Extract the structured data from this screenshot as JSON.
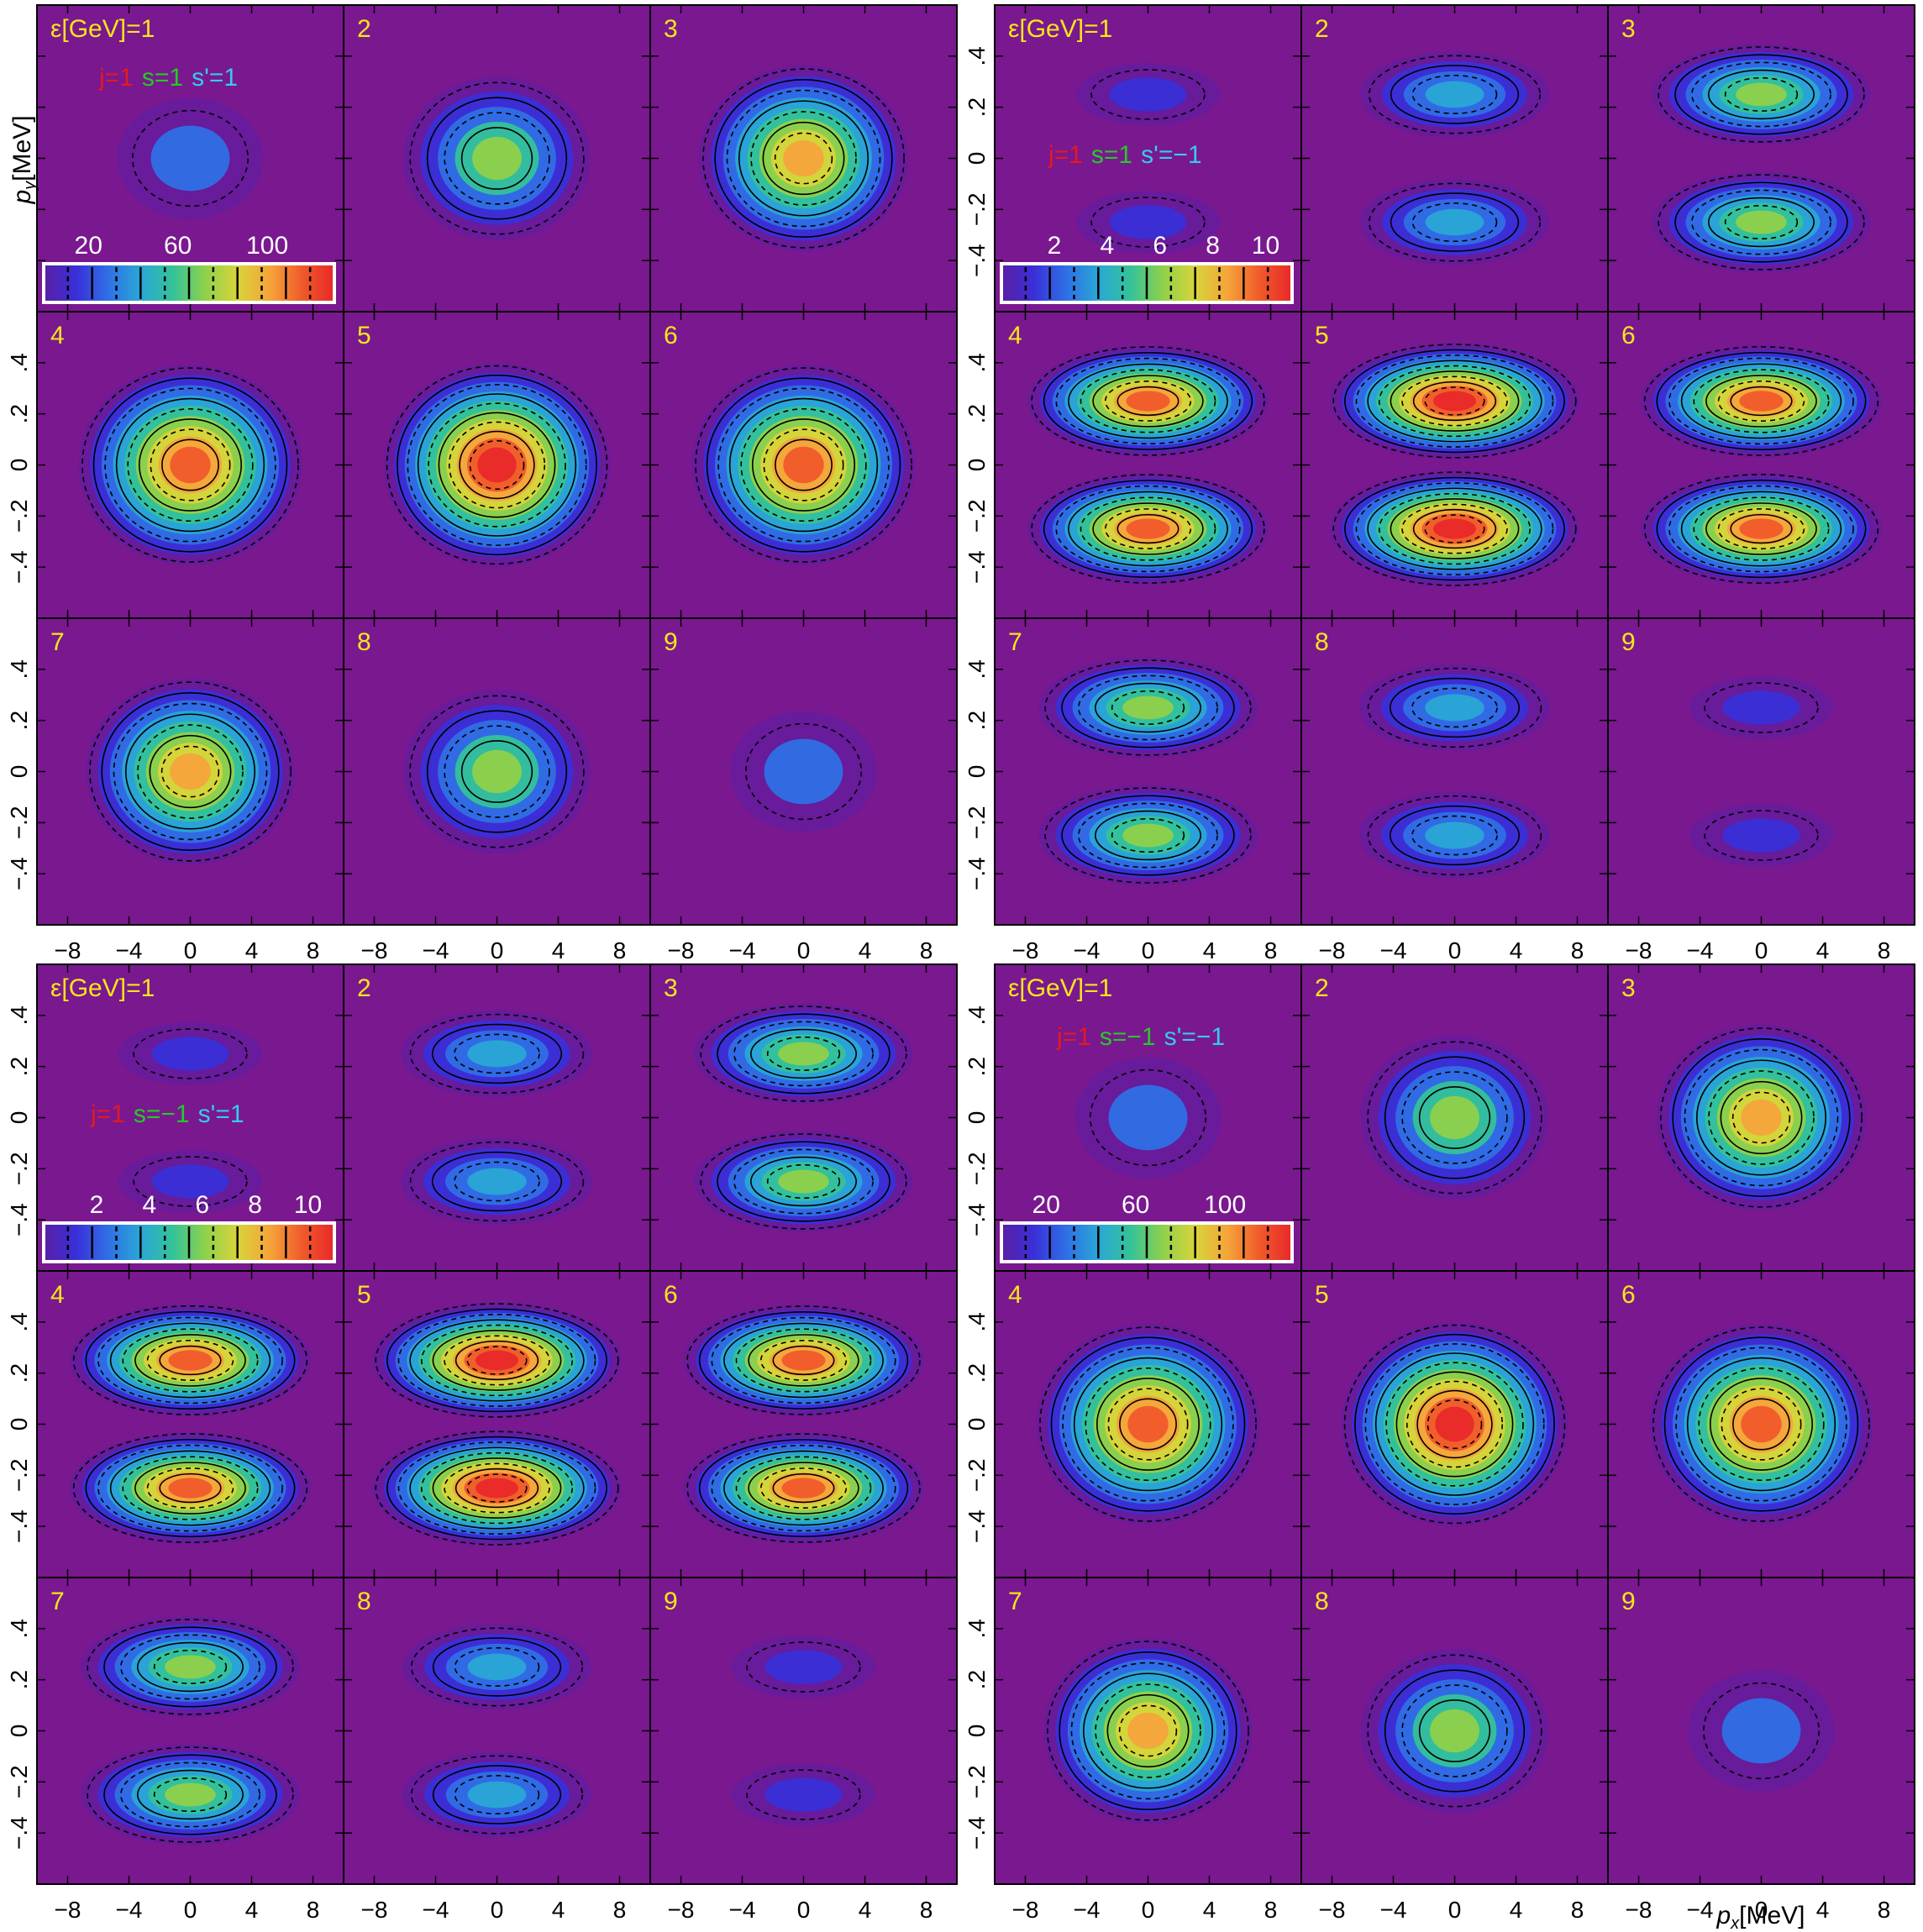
{
  "colors": {
    "background": "#7a1890",
    "panel_border": "#000000",
    "energy_label": "#f6e619",
    "j_label": "#e41a1c",
    "s_label": "#22cc22",
    "sprime_label": "#33ccee",
    "legend_text": "#ffffff",
    "colormap": [
      "#5a1fa3",
      "#3a2fd8",
      "#2f6fe6",
      "#2aa7d6",
      "#34c29a",
      "#8fd14a",
      "#d8d43a",
      "#f5a43a",
      "#f05a2a",
      "#e8282a"
    ]
  },
  "axes_labels": {
    "x": "p",
    "x_sub": "x",
    "x_unit": "[MeV]",
    "y": "p",
    "y_sub": "y",
    "y_unit": "[MeV]"
  },
  "chart_data": [
    {
      "type": "heatmap",
      "name": "",
      "spin_labels": {
        "j": "j=1",
        "s": "s=1",
        "sprime": "s'=1"
      },
      "energy_label": "ε[GeV]=1",
      "panel_labels": [
        "ε[GeV]=1",
        "2",
        "3",
        "4",
        "5",
        "6",
        "7",
        "8",
        "9"
      ],
      "panel_energies_gev": [
        1,
        2,
        3,
        4,
        5,
        6,
        7,
        8,
        9
      ],
      "xlim": [
        -10,
        10
      ],
      "ylim": [
        -0.6,
        0.6
      ],
      "x_ticks": [
        -8,
        -4,
        0,
        4,
        8
      ],
      "x_tick_labels": [
        "−8",
        "−4",
        "0",
        "4",
        "8"
      ],
      "y_ticks": [
        -0.4,
        -0.2,
        0,
        0.2,
        0.4
      ],
      "y_tick_labels": [
        "−.4",
        "−.2",
        "0",
        ".2",
        ".4"
      ],
      "lobes": "single",
      "peak_values": [
        18,
        62,
        96,
        122,
        128,
        122,
        96,
        62,
        18
      ],
      "colorbar": {
        "ticks": [
          20,
          60,
          100
        ],
        "tick_labels": [
          "20",
          "60",
          "100"
        ],
        "max": 130
      }
    },
    {
      "type": "heatmap",
      "name": "",
      "spin_labels": {
        "j": "j=1",
        "s": "s=1",
        "sprime": "s'=−1"
      },
      "energy_label": "ε[GeV]=1",
      "panel_labels": [
        "ε[GeV]=1",
        "2",
        "3",
        "4",
        "5",
        "6",
        "7",
        "8",
        "9"
      ],
      "panel_energies_gev": [
        1,
        2,
        3,
        4,
        5,
        6,
        7,
        8,
        9
      ],
      "xlim": [
        -10,
        10
      ],
      "ylim": [
        -0.6,
        0.6
      ],
      "x_ticks": [
        -8,
        -4,
        0,
        4,
        8
      ],
      "x_tick_labels": [
        "−8",
        "−4",
        "0",
        "4",
        "8"
      ],
      "y_ticks": [
        -0.4,
        -0.2,
        0,
        0.2,
        0.4
      ],
      "y_tick_labels": [
        "−.4",
        "−.2",
        "0",
        ".2",
        ".4"
      ],
      "lobes": "double",
      "peak_values": [
        0.6,
        3.4,
        6.4,
        9.3,
        10.6,
        9.4,
        6.4,
        3.6,
        0.6
      ],
      "colorbar": {
        "ticks": [
          2,
          4,
          6,
          8,
          10
        ],
        "tick_labels": [
          "2",
          "4",
          "6",
          "8",
          "10"
        ],
        "max": 11
      }
    },
    {
      "type": "heatmap",
      "name": "",
      "spin_labels": {
        "j": "j=1",
        "s": "s=−1",
        "sprime": "s'=1"
      },
      "energy_label": "ε[GeV]=1",
      "panel_labels": [
        "ε[GeV]=1",
        "2",
        "3",
        "4",
        "5",
        "6",
        "7",
        "8",
        "9"
      ],
      "panel_energies_gev": [
        1,
        2,
        3,
        4,
        5,
        6,
        7,
        8,
        9
      ],
      "xlim": [
        -10,
        10
      ],
      "ylim": [
        -0.6,
        0.6
      ],
      "x_ticks": [
        -8,
        -4,
        0,
        4,
        8
      ],
      "x_tick_labels": [
        "−8",
        "−4",
        "0",
        "4",
        "8"
      ],
      "y_ticks": [
        -0.4,
        -0.2,
        0,
        0.2,
        0.4
      ],
      "y_tick_labels": [
        "−.4",
        "−.2",
        "0",
        ".2",
        ".4"
      ],
      "lobes": "double",
      "peak_values": [
        0.6,
        3.6,
        6.4,
        9.4,
        10.6,
        9.3,
        6.4,
        3.4,
        0.6
      ],
      "colorbar": {
        "ticks": [
          2,
          4,
          6,
          8,
          10
        ],
        "tick_labels": [
          "2",
          "4",
          "6",
          "8",
          "10"
        ],
        "max": 11
      }
    },
    {
      "type": "heatmap",
      "name": "",
      "spin_labels": {
        "j": "j=1",
        "s": "s=−1",
        "sprime": "s'=−1"
      },
      "energy_label": "ε[GeV]=1",
      "panel_labels": [
        "ε[GeV]=1",
        "2",
        "3",
        "4",
        "5",
        "6",
        "7",
        "8",
        "9"
      ],
      "panel_energies_gev": [
        1,
        2,
        3,
        4,
        5,
        6,
        7,
        8,
        9
      ],
      "xlim": [
        -10,
        10
      ],
      "ylim": [
        -0.6,
        0.6
      ],
      "x_ticks": [
        -8,
        -4,
        0,
        4,
        8
      ],
      "x_tick_labels": [
        "−8",
        "−4",
        "0",
        "4",
        "8"
      ],
      "y_ticks": [
        -0.4,
        -0.2,
        0,
        0.2,
        0.4
      ],
      "y_tick_labels": [
        "−.4",
        "−.2",
        "0",
        ".2",
        ".4"
      ],
      "lobes": "single",
      "peak_values": [
        18,
        62,
        96,
        122,
        128,
        122,
        96,
        62,
        18
      ],
      "colorbar": {
        "ticks": [
          20,
          60,
          100
        ],
        "tick_labels": [
          "20",
          "60",
          "100"
        ],
        "max": 130
      }
    }
  ]
}
